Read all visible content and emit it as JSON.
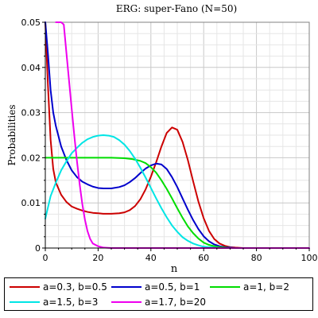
{
  "chart_data": {
    "type": "line",
    "title": "ERG: super-Fano (N=50)",
    "xlabel": "n",
    "ylabel": "Probabilities",
    "xlim": [
      0,
      100
    ],
    "ylim": [
      0,
      0.05
    ],
    "xticks": [
      "0",
      "20",
      "40",
      "60",
      "80",
      "100"
    ],
    "yticks": [
      "0",
      "0.01",
      "0.02",
      "0.03",
      "0.04",
      "0.05"
    ],
    "grid": true,
    "legend_position": "bottom",
    "series": [
      {
        "name": "a=0.3, b=0.5",
        "color": "#cc0000",
        "x": [
          0,
          1,
          2,
          3,
          4,
          6,
          8,
          10,
          12,
          14,
          16,
          18,
          20,
          22,
          25,
          28,
          30,
          32,
          34,
          36,
          38,
          40,
          42,
          44,
          46,
          48,
          50,
          52,
          54,
          56,
          58,
          60,
          62,
          64,
          66,
          68,
          70,
          72,
          75,
          80,
          90,
          100
        ],
        "y": [
          0.05,
          0.036,
          0.024,
          0.0175,
          0.0145,
          0.0118,
          0.0102,
          0.0092,
          0.0087,
          0.0083,
          0.008,
          0.0078,
          0.0077,
          0.0076,
          0.0076,
          0.0077,
          0.0079,
          0.0084,
          0.0093,
          0.0108,
          0.013,
          0.0158,
          0.019,
          0.0225,
          0.0255,
          0.0267,
          0.0262,
          0.0235,
          0.0195,
          0.0148,
          0.0103,
          0.0066,
          0.0038,
          0.002,
          0.001,
          0.0005,
          0.0002,
          0.0001,
          0.0,
          0.0,
          0.0,
          0.0
        ]
      },
      {
        "name": "a=0.5, b=1",
        "color": "#0000cc",
        "x": [
          0,
          1,
          2,
          3,
          4,
          6,
          8,
          10,
          12,
          14,
          16,
          18,
          20,
          22,
          25,
          28,
          30,
          32,
          34,
          36,
          38,
          40,
          42,
          44,
          46,
          48,
          50,
          52,
          54,
          56,
          58,
          60,
          62,
          64,
          66,
          68,
          70,
          72,
          75,
          80,
          90,
          100
        ],
        "y": [
          0.05,
          0.043,
          0.035,
          0.03,
          0.027,
          0.0225,
          0.0195,
          0.0172,
          0.0157,
          0.0147,
          0.0141,
          0.0136,
          0.0133,
          0.0132,
          0.0132,
          0.0135,
          0.0139,
          0.0146,
          0.0155,
          0.0166,
          0.0176,
          0.0183,
          0.0187,
          0.0185,
          0.0175,
          0.0157,
          0.0135,
          0.011,
          0.0085,
          0.0062,
          0.0042,
          0.0026,
          0.0015,
          0.0008,
          0.0004,
          0.0002,
          0.0001,
          0.0,
          0.0,
          0.0,
          0.0,
          0.0
        ]
      },
      {
        "name": "a=1, b=2",
        "color": "#00dd00",
        "x": [
          0,
          5,
          10,
          15,
          20,
          25,
          30,
          33,
          36,
          38,
          40,
          42,
          44,
          46,
          48,
          50,
          52,
          54,
          56,
          58,
          60,
          62,
          64,
          66,
          68,
          70,
          75,
          80,
          90,
          100
        ],
        "y": [
          0.02,
          0.02,
          0.02,
          0.02,
          0.02,
          0.02,
          0.0199,
          0.0197,
          0.0193,
          0.0188,
          0.0179,
          0.0167,
          0.015,
          0.0131,
          0.011,
          0.0088,
          0.0067,
          0.0048,
          0.0033,
          0.0021,
          0.0012,
          0.0007,
          0.0004,
          0.0002,
          0.0001,
          0.0,
          0.0,
          0.0,
          0.0,
          0.0
        ]
      },
      {
        "name": "a=1.5, b=3",
        "color": "#00e5e5",
        "x": [
          0,
          2,
          4,
          6,
          8,
          10,
          12,
          14,
          16,
          18,
          20,
          22,
          24,
          26,
          28,
          30,
          32,
          34,
          36,
          38,
          40,
          42,
          44,
          46,
          48,
          50,
          52,
          54,
          56,
          58,
          60,
          62,
          64,
          66,
          70,
          75,
          80,
          90,
          100
        ],
        "y": [
          0.0065,
          0.0115,
          0.0145,
          0.0172,
          0.0192,
          0.021,
          0.0222,
          0.0233,
          0.0241,
          0.0246,
          0.0249,
          0.025,
          0.0249,
          0.0246,
          0.0239,
          0.0229,
          0.0215,
          0.0198,
          0.0178,
          0.0156,
          0.0133,
          0.011,
          0.0088,
          0.0068,
          0.005,
          0.0036,
          0.0024,
          0.0016,
          0.001,
          0.0006,
          0.0003,
          0.0002,
          0.0001,
          0.0,
          0.0,
          0.0,
          0.0,
          0.0,
          0.0
        ]
      },
      {
        "name": "a=1.7, b=20",
        "color": "#ee00ee",
        "x": [
          4,
          6,
          7,
          8,
          9,
          10,
          11,
          12,
          13,
          14,
          15,
          16,
          17,
          18,
          20,
          22,
          25,
          30,
          40,
          60,
          80,
          100
        ],
        "y": [
          0.05,
          0.05,
          0.0495,
          0.0432,
          0.037,
          0.0308,
          0.0248,
          0.0192,
          0.0142,
          0.0098,
          0.0063,
          0.0037,
          0.002,
          0.001,
          0.0004,
          0.0001,
          0.0,
          0.0,
          0.0,
          0.0,
          0.0,
          0.0
        ]
      }
    ]
  }
}
